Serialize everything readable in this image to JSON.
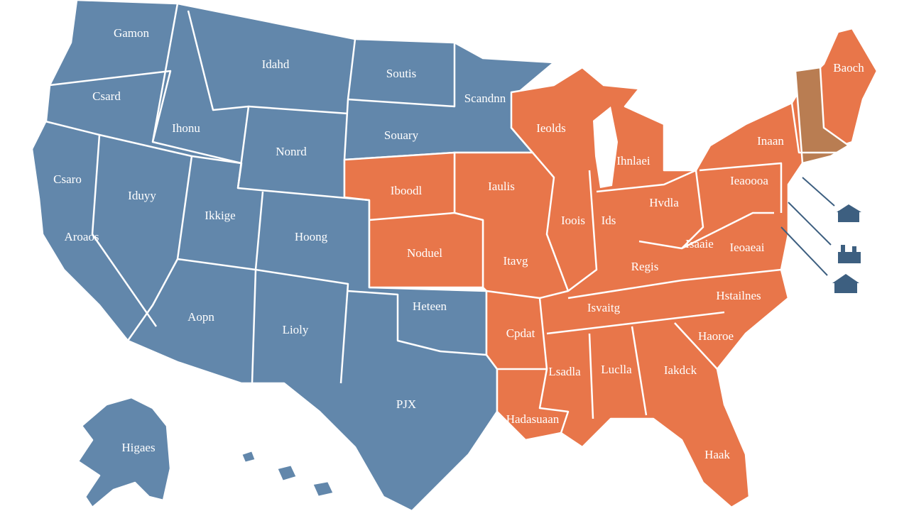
{
  "map": {
    "labels": [
      "Gamon",
      "Idahd",
      "Soutis",
      "Scandnn",
      "Csard",
      "Ihonu",
      "Nonrd",
      "Souary",
      "Csaro",
      "Iduyy",
      "Ikkige",
      "Hoong",
      "Aroaos",
      "Iboodl",
      "Iaulis",
      "Ieolds",
      "Ihnlaei",
      "Ieaoooa",
      "Inaan",
      "Baoch",
      "Ioois",
      "Ids",
      "Hvdla",
      "Itavg",
      "Noduel",
      "Ieoaeai",
      "Regis",
      "Isaaie",
      "Isvaitg",
      "Heteen",
      "Hstailnes",
      "Aopn",
      "Lioly",
      "Cpdat",
      "Haoroe",
      "Lsadla",
      "Luclla",
      "Iakdck",
      "PJX",
      "Hadasuaan",
      "Haak",
      "Higaes"
    ]
  }
}
